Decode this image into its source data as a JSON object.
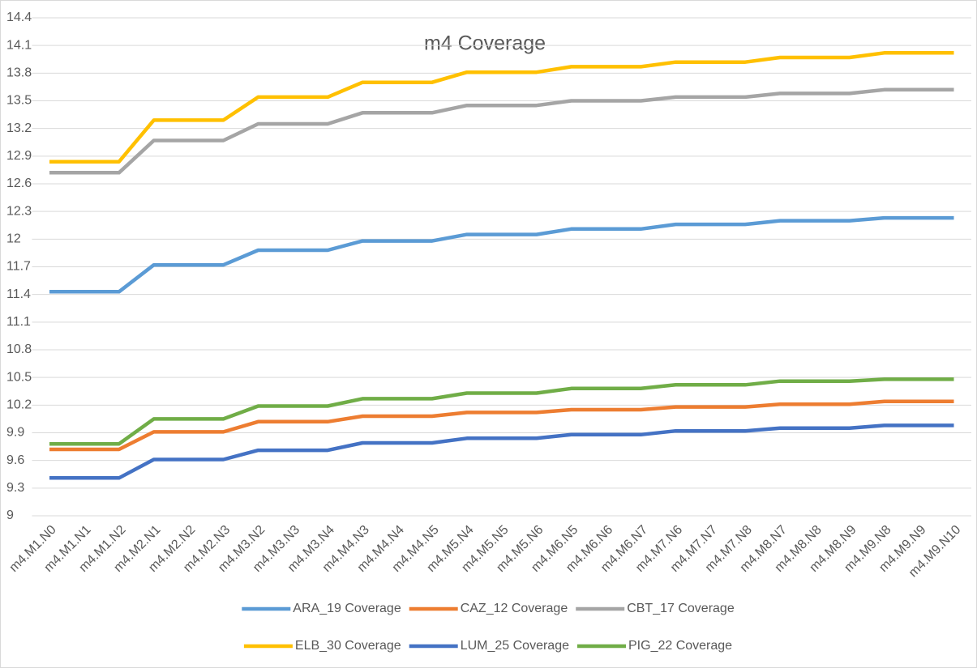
{
  "chart_data": {
    "type": "line",
    "title": "m4 Coverage",
    "categories": [
      "m4.M1.N0",
      "m4.M1.N1",
      "m4.M1.N2",
      "m4.M2.N1",
      "m4.M2.N2",
      "m4.M2.N3",
      "m4.M3.N2",
      "m4.M3.N3",
      "m4.M3.N4",
      "m4.M4.N3",
      "m4.M4.N4",
      "m4.M4.N5",
      "m4.M5.N4",
      "m4.M5.N5",
      "m4.M5.N6",
      "m4.M6.N5",
      "m4.M6.N6",
      "m4.M6.N7",
      "m4.M7.N6",
      "m4.M7.N7",
      "m4.M7.N8",
      "m4.M8.N7",
      "m4.M8.N8",
      "m4.M8.N9",
      "m4.M9.N8",
      "m4.M9.N9",
      "m4.M9.N10"
    ],
    "series": [
      {
        "name": "ARA_19 Coverage",
        "color": "#5b9bd5",
        "values": [
          11.43,
          11.43,
          11.43,
          11.72,
          11.72,
          11.72,
          11.88,
          11.88,
          11.88,
          11.98,
          11.98,
          11.98,
          12.05,
          12.05,
          12.05,
          12.11,
          12.11,
          12.11,
          12.16,
          12.16,
          12.16,
          12.2,
          12.2,
          12.2,
          12.23,
          12.23,
          12.23
        ]
      },
      {
        "name": "CAZ_12 Coverage",
        "color": "#ed7d31",
        "values": [
          9.72,
          9.72,
          9.72,
          9.91,
          9.91,
          9.91,
          10.02,
          10.02,
          10.02,
          10.08,
          10.08,
          10.08,
          10.12,
          10.12,
          10.12,
          10.15,
          10.15,
          10.15,
          10.18,
          10.18,
          10.18,
          10.21,
          10.21,
          10.21,
          10.24,
          10.24,
          10.24
        ]
      },
      {
        "name": "CBT_17 Coverage",
        "color": "#a5a5a5",
        "values": [
          12.72,
          12.72,
          12.72,
          13.07,
          13.07,
          13.07,
          13.25,
          13.25,
          13.25,
          13.37,
          13.37,
          13.37,
          13.45,
          13.45,
          13.45,
          13.5,
          13.5,
          13.5,
          13.54,
          13.54,
          13.54,
          13.58,
          13.58,
          13.58,
          13.62,
          13.62,
          13.62
        ]
      },
      {
        "name": "ELB_30 Coverage",
        "color": "#ffc000",
        "values": [
          12.84,
          12.84,
          12.84,
          13.29,
          13.29,
          13.29,
          13.54,
          13.54,
          13.54,
          13.7,
          13.7,
          13.7,
          13.81,
          13.81,
          13.81,
          13.87,
          13.87,
          13.87,
          13.92,
          13.92,
          13.92,
          13.97,
          13.97,
          13.97,
          14.02,
          14.02,
          14.02
        ]
      },
      {
        "name": "LUM_25 Coverage",
        "color": "#4472c4",
        "values": [
          9.41,
          9.41,
          9.41,
          9.61,
          9.61,
          9.61,
          9.71,
          9.71,
          9.71,
          9.79,
          9.79,
          9.79,
          9.84,
          9.84,
          9.84,
          9.88,
          9.88,
          9.88,
          9.92,
          9.92,
          9.92,
          9.95,
          9.95,
          9.95,
          9.98,
          9.98,
          9.98
        ]
      },
      {
        "name": "PIG_22 Coverage",
        "color": "#70ad47",
        "values": [
          9.78,
          9.78,
          9.78,
          10.05,
          10.05,
          10.05,
          10.19,
          10.19,
          10.19,
          10.27,
          10.27,
          10.27,
          10.33,
          10.33,
          10.33,
          10.38,
          10.38,
          10.38,
          10.42,
          10.42,
          10.42,
          10.46,
          10.46,
          10.46,
          10.48,
          10.48,
          10.48
        ]
      }
    ],
    "ylim": [
      9,
      14.4
    ],
    "yticks": [
      9,
      9.3,
      9.6,
      9.9,
      10.2,
      10.5,
      10.8,
      11.1,
      11.4,
      11.7,
      12,
      12.3,
      12.6,
      12.9,
      13.2,
      13.5,
      13.8,
      14.1,
      14.4
    ],
    "grid": true,
    "legend": "bottom"
  }
}
